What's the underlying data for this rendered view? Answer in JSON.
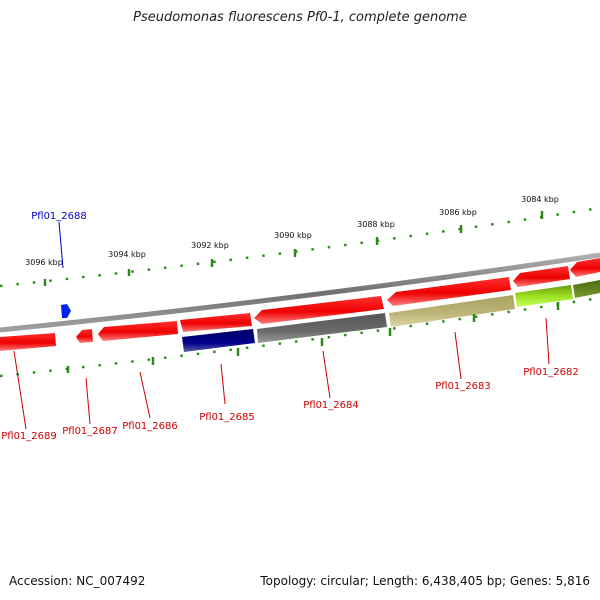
{
  "title": "Pseudomonas fluorescens Pf0-1, complete genome",
  "accession": "Accession: NC_007492",
  "summary": "Topology: circular; Length: 6,438,405 bp; Genes: 5,816",
  "colors": {
    "tick": "#2a8a1a",
    "backbone": "#8a8a8a",
    "label_red": "#cc0000",
    "label_blue": "#0000cc"
  },
  "ticks": [
    "3096 kbp",
    "3094 kbp",
    "3092 kbp",
    "3090 kbp",
    "3088 kbp",
    "3086 kbp",
    "3084 kbp"
  ],
  "genes": [
    {
      "name": "Pfl01_2688",
      "color": "#0000cc"
    },
    {
      "name": "Pfl01_2689",
      "color": "#cc0000"
    },
    {
      "name": "Pfl01_2687",
      "color": "#cc0000"
    },
    {
      "name": "Pfl01_2686",
      "color": "#cc0000"
    },
    {
      "name": "Pfl01_2685",
      "color": "#cc0000"
    },
    {
      "name": "Pfl01_2684",
      "color": "#cc0000"
    },
    {
      "name": "Pfl01_2683",
      "color": "#cc0000"
    },
    {
      "name": "Pfl01_2682",
      "color": "#cc0000"
    }
  ]
}
